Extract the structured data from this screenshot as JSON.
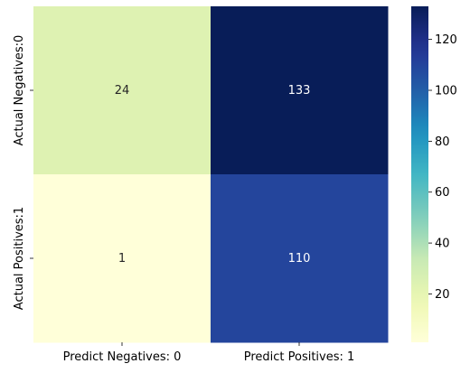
{
  "chart_data": {
    "type": "heatmap",
    "x_categories": [
      "Predict Negatives: 0",
      "Predict Positives: 1"
    ],
    "y_categories": [
      "Actual Negatives:0",
      "Actual Positives:1"
    ],
    "values": [
      [
        24,
        133
      ],
      [
        1,
        110
      ]
    ],
    "annotations": [
      [
        "24",
        "133"
      ],
      [
        "1",
        "110"
      ]
    ],
    "colormap": "YlGnBu",
    "vmin": 1,
    "vmax": 133,
    "colorbar_ticks": [
      20,
      40,
      60,
      80,
      100,
      120
    ],
    "colorbar_tick_labels": [
      "20",
      "40",
      "60",
      "80",
      "100",
      "120"
    ],
    "annotation_colors": {
      "light_cell": "#262626",
      "dark_cell": "#ffffff"
    }
  }
}
